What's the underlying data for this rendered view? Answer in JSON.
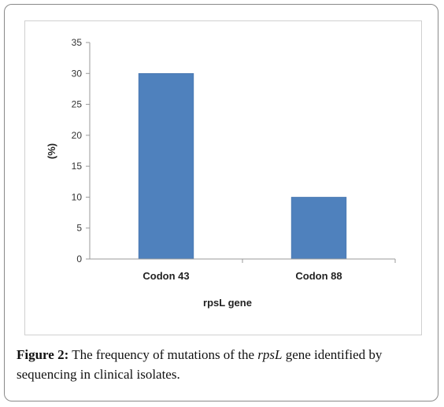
{
  "chart_data": {
    "type": "bar",
    "categories": [
      "Codon 43",
      "Codon 88"
    ],
    "values": [
      30,
      10
    ],
    "xlabel": "rpsL gene",
    "ylabel": "(%)",
    "ylim": [
      0,
      35
    ],
    "yticks": [
      0,
      5,
      10,
      15,
      20,
      25,
      30,
      35
    ],
    "grid": false,
    "bar_color": "#4f81bd",
    "legend": "none"
  },
  "caption": {
    "label": "Figure 2:",
    "text_before": " The frequency of mutations of the ",
    "gene": "rpsL",
    "text_after": " gene identified by sequencing in clinical isolates."
  }
}
